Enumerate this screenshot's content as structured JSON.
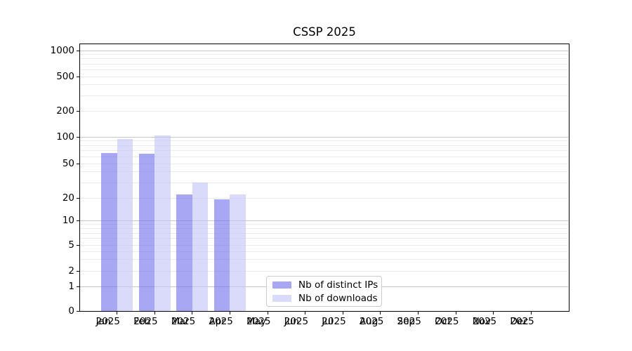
{
  "chart_data": {
    "type": "bar",
    "title": "CSSP 2025",
    "categories": [
      "Jan",
      "Feb",
      "Mar",
      "Apr",
      "May",
      "Jun",
      "Jul",
      "Aug",
      "Sep",
      "Oct",
      "Nov",
      "Dec"
    ],
    "category_year": "2025",
    "series": [
      {
        "name": "Nb of distinct IPs",
        "color": "rgba(113,113,237,0.62)",
        "values": [
          66,
          65,
          22,
          19,
          0,
          0,
          0,
          0,
          0,
          0,
          0,
          0
        ]
      },
      {
        "name": "Nb of downloads",
        "color": "rgba(195,197,247,0.62)",
        "values": [
          95,
          104,
          30,
          22,
          0,
          0,
          0,
          0,
          0,
          0,
          0,
          0
        ]
      }
    ],
    "y_axis": {
      "scale": "symlog",
      "tick_labels": [
        0,
        1,
        2,
        5,
        10,
        20,
        50,
        100,
        200,
        500,
        1000
      ],
      "min": 0,
      "max": 1000
    },
    "x_axis": {
      "label_line2": "2025"
    },
    "grid": {
      "enabled": true,
      "major_color": "#c6c6c6",
      "minor_color": "#ebebeb"
    },
    "legend": {
      "position": "lower-center",
      "border_color": "#cccccc"
    },
    "spine_color": "#000000",
    "background_color": "#ffffff"
  }
}
